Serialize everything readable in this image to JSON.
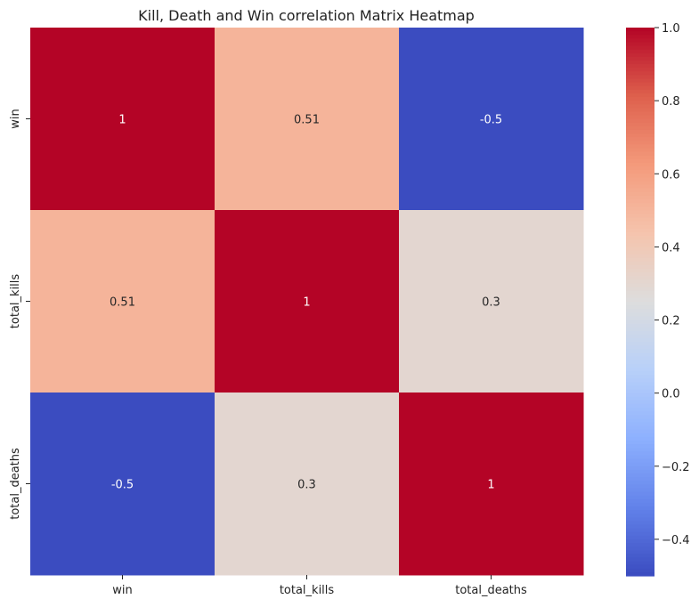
{
  "chart_data": {
    "type": "heatmap",
    "title": "Kill, Death and Win correlation Matrix Heatmap",
    "xlabel": "",
    "ylabel": "",
    "x_categories": [
      "win",
      "total_kills",
      "total_deaths"
    ],
    "y_categories": [
      "win",
      "total_kills",
      "total_deaths"
    ],
    "values": [
      [
        1,
        0.51,
        -0.5
      ],
      [
        0.51,
        1,
        0.3
      ],
      [
        -0.5,
        0.3,
        1
      ]
    ],
    "cell_labels": [
      [
        "1",
        "0.51",
        "-0.5"
      ],
      [
        "0.51",
        "1",
        "0.3"
      ],
      [
        "-0.5",
        "0.3",
        "1"
      ]
    ],
    "colormap": "coolwarm",
    "colorbar": {
      "range": [
        -0.5,
        1.0
      ],
      "ticks": [
        -0.4,
        -0.2,
        0.0,
        0.2,
        0.4,
        0.6,
        0.8,
        1.0
      ],
      "tick_labels": [
        "−0.4",
        "−0.2",
        "0.0",
        "0.2",
        "0.4",
        "0.6",
        "0.8",
        "1.0"
      ]
    },
    "grid": false,
    "colors": {
      "low": "#3b4cc0",
      "mid": "#dddddd",
      "high": "#b40426"
    }
  }
}
